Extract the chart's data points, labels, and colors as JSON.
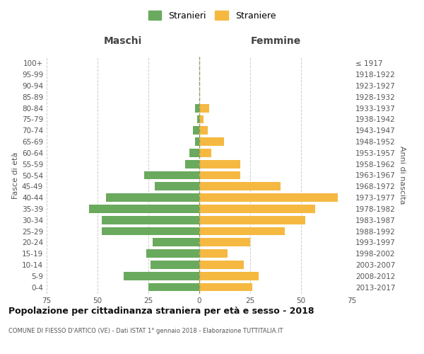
{
  "age_groups": [
    "0-4",
    "5-9",
    "10-14",
    "15-19",
    "20-24",
    "25-29",
    "30-34",
    "35-39",
    "40-44",
    "45-49",
    "50-54",
    "55-59",
    "60-64",
    "65-69",
    "70-74",
    "75-79",
    "80-84",
    "85-89",
    "90-94",
    "95-99",
    "100+"
  ],
  "birth_years": [
    "2013-2017",
    "2008-2012",
    "2003-2007",
    "1998-2002",
    "1993-1997",
    "1988-1992",
    "1983-1987",
    "1978-1982",
    "1973-1977",
    "1968-1972",
    "1963-1967",
    "1958-1962",
    "1953-1957",
    "1948-1952",
    "1943-1947",
    "1938-1942",
    "1933-1937",
    "1928-1932",
    "1923-1927",
    "1918-1922",
    "≤ 1917"
  ],
  "males": [
    25,
    37,
    24,
    26,
    23,
    48,
    48,
    54,
    46,
    22,
    27,
    7,
    5,
    2,
    3,
    1,
    2,
    0,
    0,
    0,
    0
  ],
  "females": [
    26,
    29,
    22,
    14,
    25,
    42,
    52,
    57,
    68,
    40,
    20,
    20,
    6,
    12,
    4,
    2,
    5,
    0,
    0,
    0,
    0
  ],
  "male_color": "#6aaa5e",
  "female_color": "#f5b942",
  "title": "Popolazione per cittadinanza straniera per età e sesso - 2018",
  "subtitle": "COMUNE DI FIESSO D'ARTICO (VE) - Dati ISTAT 1° gennaio 2018 - Elaborazione TUTTITALIA.IT",
  "legend_male": "Stranieri",
  "legend_female": "Straniere",
  "header_left": "Maschi",
  "header_right": "Femmine",
  "ylabel_left": "Fasce di età",
  "ylabel_right": "Anni di nascita",
  "xlim": 75,
  "background_color": "#ffffff",
  "grid_color": "#cccccc",
  "bar_height": 0.75
}
